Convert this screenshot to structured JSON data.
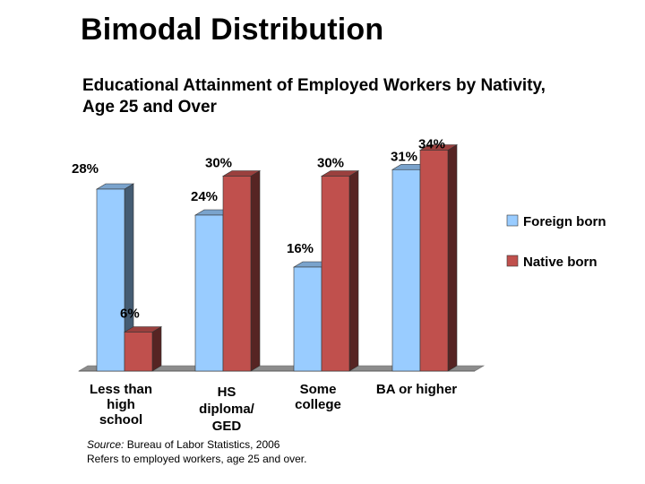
{
  "slide_title": "Bimodal Distribution",
  "chart_data": {
    "type": "bar",
    "title": "Educational Attainment of Employed Workers by Nativity, Age 25 and Over",
    "categories": [
      "Less than high school",
      "HS diploma/ GED",
      "Some college",
      "BA or higher"
    ],
    "category_lines": [
      [
        "Less than",
        "high",
        "school"
      ],
      [
        "HS",
        "diploma/",
        "GED"
      ],
      [
        "Some",
        "college"
      ],
      [
        "BA or higher"
      ]
    ],
    "series": [
      {
        "name": "Foreign born",
        "values": [
          28,
          24,
          16,
          31
        ],
        "labels": [
          "28%",
          "24%",
          "16%",
          "31%"
        ],
        "color": "#99ccff"
      },
      {
        "name": "Native born",
        "values": [
          6,
          30,
          30,
          34
        ],
        "labels": [
          "6%",
          "30%",
          "30%",
          "34%"
        ],
        "color": "#c0504d"
      }
    ],
    "ylim": [
      0,
      36
    ],
    "legend_position": "right",
    "grid": false,
    "style": "3d-clustered-column"
  },
  "source": {
    "label": "Source:",
    "text": " Bureau of Labor Statistics, 2006",
    "note": "Refers to employed workers, age 25 and over."
  }
}
